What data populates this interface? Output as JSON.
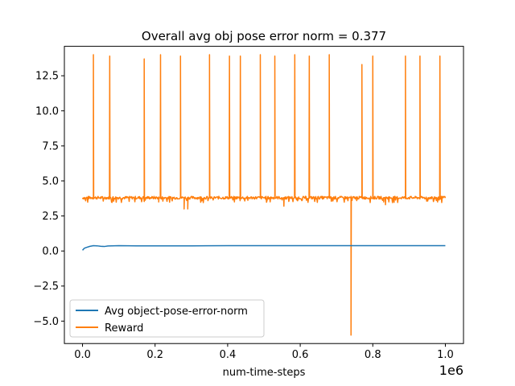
{
  "chart_data": {
    "type": "line",
    "title": "Overall avg obj pose error norm = 0.377",
    "xlabel": "num-time-steps",
    "ylabel": "",
    "x_offset_text": "1e6",
    "xlim": [
      -0.05,
      1.05
    ],
    "ylim": [
      -6.6,
      14.6
    ],
    "x_ticks": [
      0.0,
      0.2,
      0.4,
      0.6,
      0.8,
      1.0
    ],
    "x_tick_labels": [
      "0.0",
      "0.2",
      "0.4",
      "0.6",
      "0.8",
      "1.0"
    ],
    "y_ticks": [
      -5.0,
      -2.5,
      0.0,
      2.5,
      5.0,
      7.5,
      10.0,
      12.5
    ],
    "y_tick_labels": [
      "−5.0",
      "−2.5",
      "0.0",
      "2.5",
      "5.0",
      "7.5",
      "10.0",
      "12.5"
    ],
    "grid": false,
    "legend_position": "lower-left",
    "series": [
      {
        "name": "Avg object-pose-error-norm",
        "color": "#1f77b4",
        "x": [
          0.0,
          0.005,
          0.01,
          0.02,
          0.03,
          0.04,
          0.05,
          0.06,
          0.07,
          0.08,
          0.1,
          0.15,
          0.2,
          0.3,
          0.4,
          0.5,
          0.6,
          0.7,
          0.8,
          0.9,
          1.0
        ],
        "y": [
          0.05,
          0.2,
          0.25,
          0.33,
          0.38,
          0.37,
          0.34,
          0.32,
          0.36,
          0.37,
          0.38,
          0.37,
          0.37,
          0.37,
          0.38,
          0.38,
          0.38,
          0.378,
          0.378,
          0.377,
          0.377
        ]
      },
      {
        "name": "Reward",
        "color": "#ff7f0e",
        "baseline": 3.8,
        "noise": 0.1,
        "x_range": [
          0.0,
          1.0
        ],
        "spikes": [
          {
            "x": 0.03,
            "y": 14.0
          },
          {
            "x": 0.075,
            "y": 13.9
          },
          {
            "x": 0.17,
            "y": 13.7
          },
          {
            "x": 0.215,
            "y": 14.0
          },
          {
            "x": 0.27,
            "y": 13.9
          },
          {
            "x": 0.35,
            "y": 14.0
          },
          {
            "x": 0.405,
            "y": 13.9
          },
          {
            "x": 0.435,
            "y": 13.9
          },
          {
            "x": 0.49,
            "y": 14.0
          },
          {
            "x": 0.53,
            "y": 13.9
          },
          {
            "x": 0.585,
            "y": 14.0
          },
          {
            "x": 0.625,
            "y": 13.9
          },
          {
            "x": 0.68,
            "y": 14.0
          },
          {
            "x": 0.77,
            "y": 13.3
          },
          {
            "x": 0.8,
            "y": 13.9
          },
          {
            "x": 0.89,
            "y": 13.9
          },
          {
            "x": 0.93,
            "y": 13.9
          },
          {
            "x": 0.985,
            "y": 13.9
          }
        ],
        "dips": [
          {
            "x": 0.28,
            "y": 3.0
          },
          {
            "x": 0.29,
            "y": 3.0
          },
          {
            "x": 0.555,
            "y": 3.2
          },
          {
            "x": 0.74,
            "y": -6.0
          },
          {
            "x": 0.835,
            "y": 3.3
          },
          {
            "x": 0.83,
            "y": 3.5
          },
          {
            "x": 0.21,
            "y": 3.5
          },
          {
            "x": 0.975,
            "y": 3.6
          }
        ]
      }
    ]
  }
}
